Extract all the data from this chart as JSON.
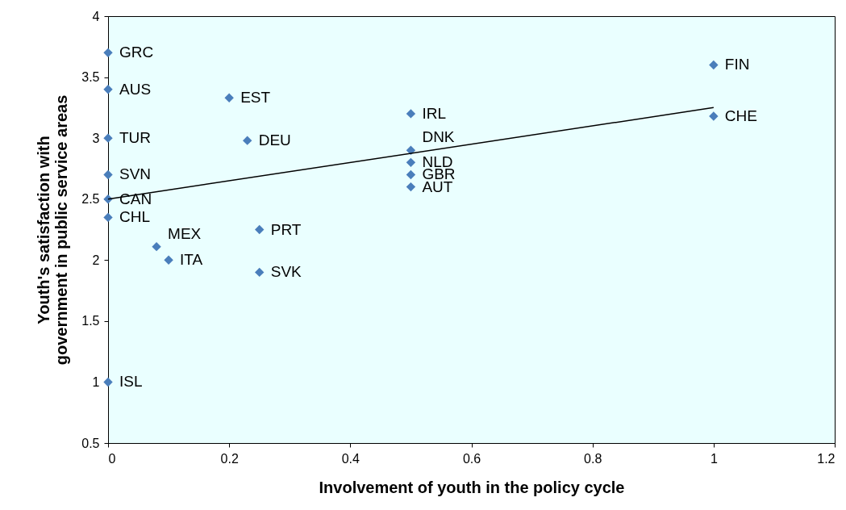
{
  "chart_data": {
    "type": "scatter",
    "xlabel": "Involvement of youth in the policy cycle",
    "ylabel": "Youth's satisfaction with government in public service areas",
    "xlim": [
      0,
      1.2
    ],
    "xticks": [
      0,
      0.2,
      0.4,
      0.6,
      0.8,
      1,
      1.2
    ],
    "ylim": [
      0.5,
      4
    ],
    "yticks": [
      0.5,
      1,
      1.5,
      2,
      2.5,
      3,
      3.5,
      4
    ],
    "marker": "diamond",
    "series": [
      {
        "name": "GRC",
        "color": "#4a7ebb",
        "x": [
          0
        ],
        "values": [
          3.7
        ]
      },
      {
        "name": "AUS",
        "color": "#4a7ebb",
        "x": [
          0
        ],
        "values": [
          3.4
        ]
      },
      {
        "name": "TUR",
        "color": "#4a7ebb",
        "x": [
          0
        ],
        "values": [
          3.0
        ]
      },
      {
        "name": "SVN",
        "color": "#4a7ebb",
        "x": [
          0
        ],
        "values": [
          2.7
        ]
      },
      {
        "name": "CAN",
        "color": "#4a7ebb",
        "x": [
          0
        ],
        "values": [
          2.5
        ]
      },
      {
        "name": "CHL",
        "color": "#4a7ebb",
        "x": [
          0
        ],
        "values": [
          2.35
        ]
      },
      {
        "name": "ISL",
        "color": "#4a7ebb",
        "x": [
          0
        ],
        "values": [
          1.0
        ]
      },
      {
        "name": "EST",
        "color": "#4a7ebb",
        "x": [
          0.2
        ],
        "values": [
          3.33
        ]
      },
      {
        "name": "DEU",
        "color": "#4a7ebb",
        "x": [
          0.23
        ],
        "values": [
          2.98
        ]
      },
      {
        "name": "MEX",
        "color": "#4a7ebb",
        "x": [
          0.08
        ],
        "values": [
          2.11
        ]
      },
      {
        "name": "ITA",
        "color": "#4a7ebb",
        "x": [
          0.1
        ],
        "values": [
          2.0
        ]
      },
      {
        "name": "PRT",
        "color": "#4a7ebb",
        "x": [
          0.25
        ],
        "values": [
          2.25
        ]
      },
      {
        "name": "SVK",
        "color": "#4a7ebb",
        "x": [
          0.25
        ],
        "values": [
          1.9
        ]
      },
      {
        "name": "IRL",
        "color": "#4a7ebb",
        "x": [
          0.5
        ],
        "values": [
          3.2
        ]
      },
      {
        "name": "DNK",
        "color": "#4a7ebb",
        "x": [
          0.5
        ],
        "values": [
          2.9
        ]
      },
      {
        "name": "NLD",
        "color": "#4a7ebb",
        "x": [
          0.5
        ],
        "values": [
          2.8
        ]
      },
      {
        "name": "GBR",
        "color": "#4a7ebb",
        "x": [
          0.5
        ],
        "values": [
          2.7
        ]
      },
      {
        "name": "AUT",
        "color": "#4a7ebb",
        "x": [
          0.5
        ],
        "values": [
          2.6
        ]
      },
      {
        "name": "FIN",
        "color": "#4a7ebb",
        "x": [
          1
        ],
        "values": [
          3.6
        ]
      },
      {
        "name": "CHE",
        "color": "#4a7ebb",
        "x": [
          1
        ],
        "values": [
          3.18
        ]
      },
      {
        "type": "line",
        "marker": "none",
        "color": "#000000",
        "x": [
          0,
          1
        ],
        "values": [
          2.5,
          3.25
        ]
      }
    ]
  }
}
